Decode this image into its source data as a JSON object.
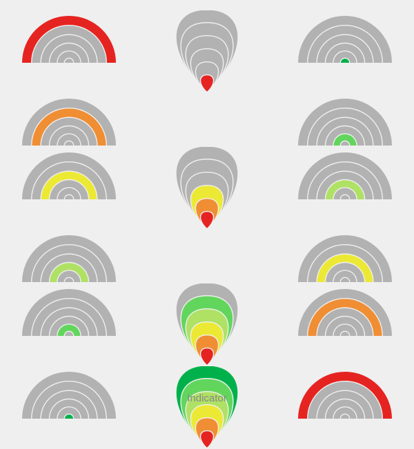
{
  "caption": "Indicator",
  "background_color": "#efefef",
  "ring_base_color": "#b2b2b2",
  "ring_separator_color": "#efefef",
  "colors": {
    "c1": "#e52421",
    "c2": "#f08e34",
    "c3": "#ece935",
    "c4": "#afe164",
    "c5": "#62d65c",
    "c6": "#00b14b"
  },
  "left_column_highlight_indices": [
    1,
    2,
    3,
    4,
    5,
    6
  ],
  "right_column_highlight_indices": [
    6,
    5,
    4,
    3,
    2,
    1
  ],
  "center_column_fill_levels": [
    1,
    3,
    5,
    6
  ],
  "gauge": {
    "type": "radial-indicator",
    "outer_radius": 68,
    "ring_count": 6,
    "band_width_outer": 13,
    "band_width_inner": 8
  },
  "teardrop": {
    "width": 120,
    "height": 120
  }
}
